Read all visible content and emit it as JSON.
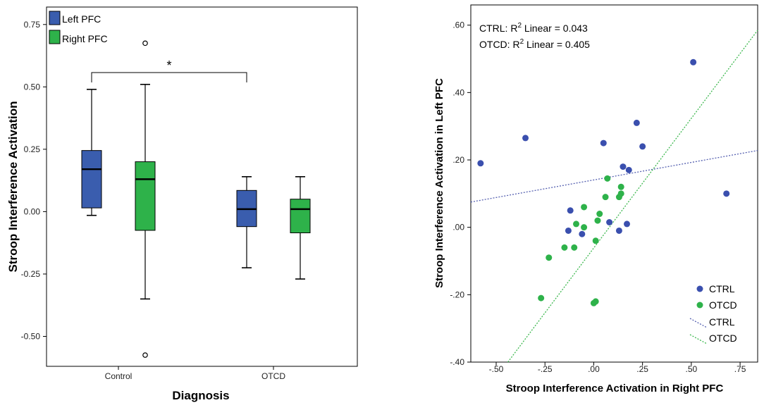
{
  "chart_data": [
    {
      "type": "box",
      "xlabel": "Diagnosis",
      "ylabel": "Stroop Interference Activation",
      "ylim": [
        -0.62,
        0.82
      ],
      "yticks": [
        "0.75",
        "0.50",
        "0.25",
        "0.00",
        "-0.25",
        "-0.50"
      ],
      "ytick_values": [
        0.75,
        0.5,
        0.25,
        0.0,
        -0.25,
        -0.5
      ],
      "categories": [
        "Control",
        "OTCD"
      ],
      "legend": [
        {
          "label": "Left PFC",
          "color": "#3a5dae"
        },
        {
          "label": "Right PFC",
          "color": "#2eb24a"
        }
      ],
      "significance": {
        "from": "Control",
        "to": "OTCD",
        "label": "*"
      },
      "boxes": [
        {
          "category": "Control",
          "series": "Left PFC",
          "whisker_low": -0.015,
          "q1": 0.015,
          "median": 0.17,
          "q3": 0.245,
          "whisker_high": 0.49,
          "outliers": []
        },
        {
          "category": "Control",
          "series": "Right PFC",
          "whisker_low": -0.35,
          "q1": -0.075,
          "median": 0.13,
          "q3": 0.2,
          "whisker_high": 0.51,
          "outliers": [
            0.675,
            -0.575
          ]
        },
        {
          "category": "OTCD",
          "series": "Left PFC",
          "whisker_low": -0.225,
          "q1": -0.06,
          "median": 0.01,
          "q3": 0.085,
          "whisker_high": 0.14,
          "outliers": []
        },
        {
          "category": "OTCD",
          "series": "Right PFC",
          "whisker_low": -0.27,
          "q1": -0.085,
          "median": 0.01,
          "q3": 0.05,
          "whisker_high": 0.14,
          "outliers": []
        }
      ]
    },
    {
      "type": "scatter",
      "xlabel": "Stroop Interference Activation in Right PFC",
      "ylabel": "Stroop Interference Activation in Left PFC",
      "xlim": [
        -0.63,
        0.84
      ],
      "ylim": [
        -0.4,
        0.66
      ],
      "xticks": [
        "-.50",
        "-.25",
        ".00",
        ".25",
        ".50",
        ".75"
      ],
      "xtick_values": [
        -0.5,
        -0.25,
        0.0,
        0.25,
        0.5,
        0.75
      ],
      "yticks": [
        ".60",
        ".40",
        ".20",
        ".00",
        "-.20",
        "-.40"
      ],
      "ytick_values": [
        0.6,
        0.4,
        0.2,
        0.0,
        -0.2,
        -0.4
      ],
      "annotation_ctrl": {
        "prefix": "CTRL: R",
        "sup": "2",
        "suffix": " Linear = 0.043"
      },
      "annotation_otcd": {
        "prefix": "OTCD: R",
        "sup": "2",
        "suffix": " Linear = 0.405"
      },
      "legend": [
        {
          "label": "CTRL",
          "kind": "point",
          "color": "#3a4fae"
        },
        {
          "label": "OTCD",
          "kind": "point",
          "color": "#2eb24a"
        },
        {
          "label": "CTRL",
          "kind": "line",
          "color": "#5560b0"
        },
        {
          "label": "OTCD",
          "kind": "line",
          "color": "#3cb84e"
        }
      ],
      "series": [
        {
          "name": "CTRL",
          "color": "#3a4fae",
          "points": [
            [
              -0.58,
              0.19
            ],
            [
              -0.35,
              0.265
            ],
            [
              -0.12,
              0.05
            ],
            [
              -0.13,
              -0.01
            ],
            [
              -0.06,
              -0.02
            ],
            [
              0.05,
              0.25
            ],
            [
              0.08,
              0.015
            ],
            [
              0.15,
              0.18
            ],
            [
              0.17,
              0.01
            ],
            [
              0.18,
              0.17
            ],
            [
              0.22,
              0.31
            ],
            [
              0.25,
              0.24
            ],
            [
              0.13,
              -0.01
            ],
            [
              0.51,
              0.49
            ],
            [
              0.68,
              0.1
            ]
          ]
        },
        {
          "name": "OTCD",
          "color": "#2eb24a",
          "points": [
            [
              -0.27,
              -0.21
            ],
            [
              -0.23,
              -0.09
            ],
            [
              -0.15,
              -0.06
            ],
            [
              -0.1,
              -0.06
            ],
            [
              -0.09,
              0.01
            ],
            [
              -0.05,
              0.06
            ],
            [
              0.0,
              -0.225
            ],
            [
              0.01,
              -0.22
            ],
            [
              0.01,
              -0.04
            ],
            [
              0.02,
              0.02
            ],
            [
              0.03,
              0.04
            ],
            [
              0.06,
              0.09
            ],
            [
              0.07,
              0.145
            ],
            [
              0.13,
              0.09
            ],
            [
              0.14,
              0.12
            ],
            [
              0.14,
              0.1
            ],
            [
              -0.05,
              0.0
            ]
          ]
        }
      ],
      "fit_lines": [
        {
          "name": "CTRL",
          "color": "#5560b0",
          "x": [
            -0.63,
            0.84
          ],
          "y": [
            0.075,
            0.228
          ]
        },
        {
          "name": "OTCD",
          "color": "#3cb84e",
          "x": [
            -0.44,
            0.84
          ],
          "y": [
            -0.4,
            0.585
          ]
        }
      ]
    }
  ]
}
